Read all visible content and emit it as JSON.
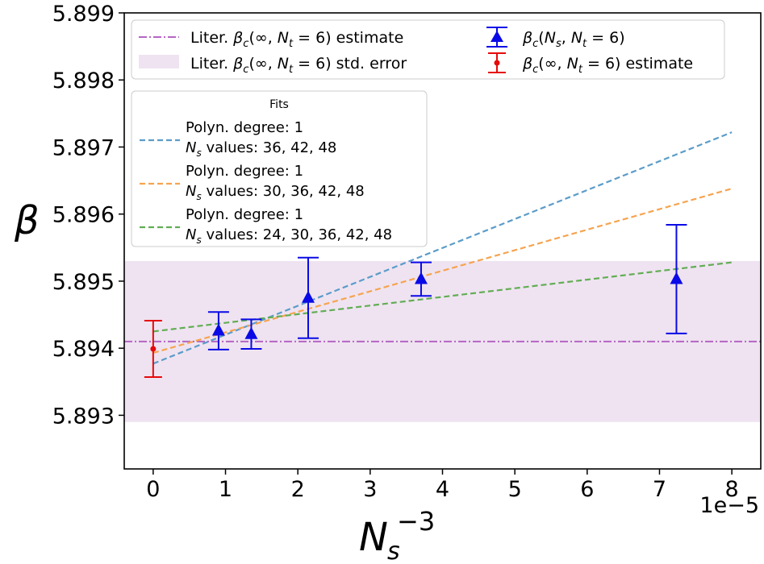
{
  "chart_data": {
    "type": "scatter",
    "xlabel": "N_s^{-3}",
    "ylabel": "β",
    "x_offset_label": "1e−5",
    "xlim": [
      -0.4,
      8.4
    ],
    "ylim": [
      5.8922,
      5.899
    ],
    "x_ticks": [
      0,
      1,
      2,
      3,
      4,
      5,
      6,
      7,
      8
    ],
    "x_tick_labels": [
      "0",
      "1",
      "2",
      "3",
      "4",
      "5",
      "6",
      "7",
      "8"
    ],
    "y_ticks": [
      5.893,
      5.894,
      5.895,
      5.896,
      5.897,
      5.898,
      5.899
    ],
    "y_tick_labels": [
      "5.893",
      "5.894",
      "5.895",
      "5.896",
      "5.897",
      "5.898",
      "5.899"
    ],
    "literature": {
      "value": 5.8941,
      "std_error": 0.0012,
      "color": "#b565c4",
      "band_color": "#efe3f1",
      "label": "Liter. β_c(∞, N_t = 6) estimate",
      "band_label": "Liter. β_c(∞, N_t = 6) std. error"
    },
    "series": [
      {
        "name": "β_c(N_s, N_t = 6)",
        "color": "#0a0ae6",
        "marker": "triangle",
        "points": [
          {
            "x": 0.904,
            "y": 5.89426,
            "err": 0.00028
          },
          {
            "x": 1.356,
            "y": 5.89421,
            "err": 0.00022
          },
          {
            "x": 2.143,
            "y": 5.89475,
            "err": 0.0006
          },
          {
            "x": 3.704,
            "y": 5.89503,
            "err": 0.00025
          },
          {
            "x": 7.234,
            "y": 5.89503,
            "err": 0.00081
          }
        ]
      },
      {
        "name": "β_c(∞, N_t = 6) estimate",
        "color": "#e60a0a",
        "marker": "dot",
        "points": [
          {
            "x": 0,
            "y": 5.89399,
            "err": 0.00042
          }
        ]
      }
    ],
    "fits": [
      {
        "degree_label": "Polyn. degree: 1",
        "ns_label": "N_s values: 36, 42, 48",
        "color": "#5b9cc9",
        "x": [
          0,
          8
        ],
        "y": [
          5.89377,
          5.89722
        ]
      },
      {
        "degree_label": "Polyn. degree: 1",
        "ns_label": "N_s values: 30, 36, 42, 48",
        "color": "#f6a44f",
        "x": [
          0,
          8
        ],
        "y": [
          5.89393,
          5.89638
        ]
      },
      {
        "degree_label": "Polyn. degree: 1",
        "ns_label": "N_s values: 24, 30, 36, 42, 48",
        "color": "#62ad54",
        "x": [
          0,
          8
        ],
        "y": [
          5.89425,
          5.89528
        ]
      }
    ],
    "legend_main": {
      "items": [
        {
          "label": "Liter. β_c(∞, N_t = 6) estimate"
        },
        {
          "label": "Liter. β_c(∞, N_t = 6) std. error"
        },
        {
          "label": "β_c(N_s, N_t = 6)"
        },
        {
          "label": "β_c(∞, N_t = 6) estimate"
        }
      ]
    },
    "legend_fits": {
      "title": "Fits"
    }
  }
}
